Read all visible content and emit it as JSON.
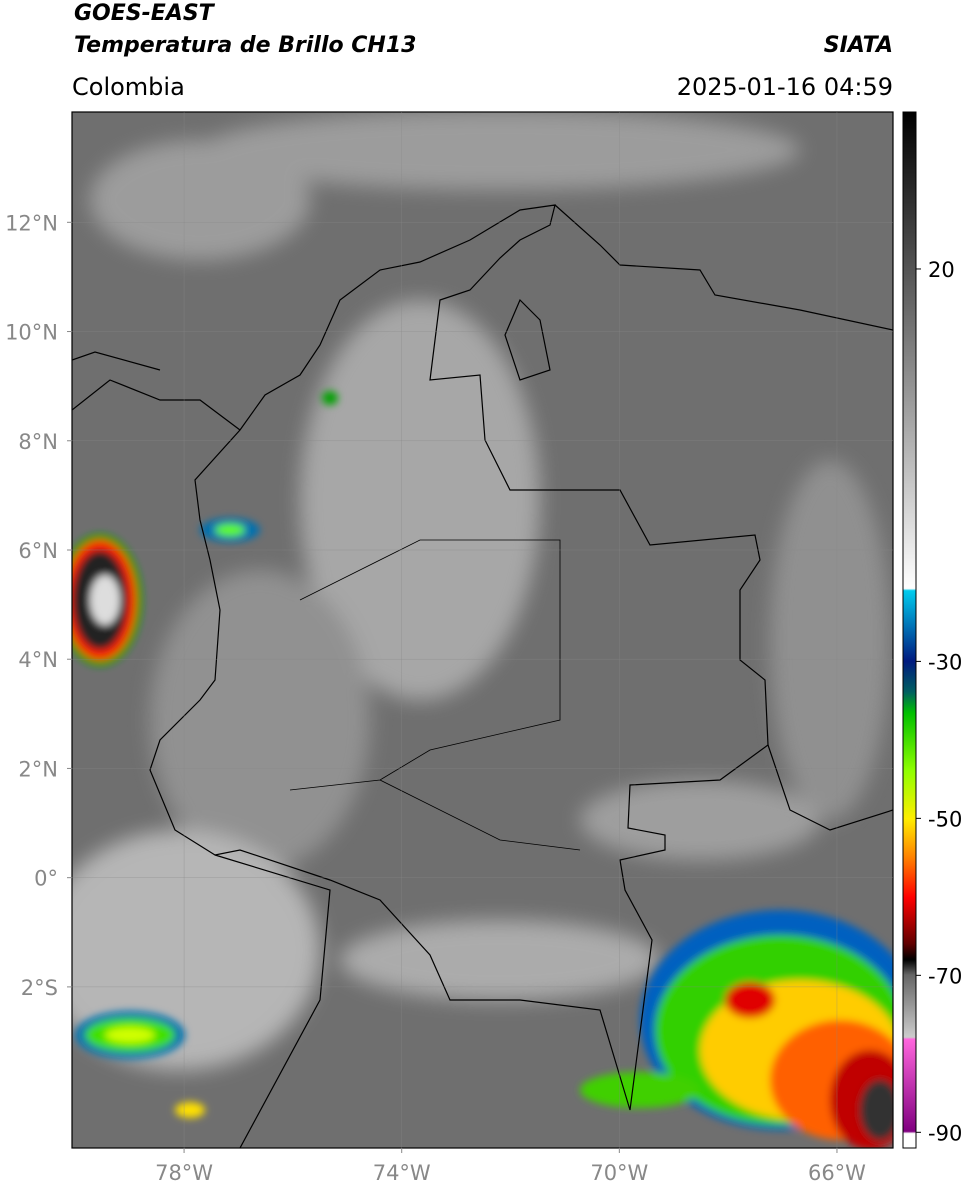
{
  "header": {
    "satellite": "GOES-EAST",
    "product": "Temperatura de Brillo CH13",
    "region": "Colombia",
    "source": "SIATA",
    "timestamp": "2025-01-16 04:59"
  },
  "map": {
    "lonlim": [
      -80.06,
      -64.97
    ],
    "latlim": [
      -4.95,
      14.02
    ],
    "lonticks": [
      {
        "value": -78,
        "label": "78°W"
      },
      {
        "value": -74,
        "label": "74°W"
      },
      {
        "value": -70,
        "label": "70°W"
      },
      {
        "value": -66,
        "label": "66°W"
      }
    ],
    "latticks": [
      {
        "value": 12,
        "label": "12°N"
      },
      {
        "value": 10,
        "label": "10°N"
      },
      {
        "value": 8,
        "label": "8°N"
      },
      {
        "value": 6,
        "label": "6°N"
      },
      {
        "value": 4,
        "label": "4°N"
      },
      {
        "value": 2,
        "label": "2°N"
      },
      {
        "value": 0,
        "label": "0°"
      },
      {
        "value": -2,
        "label": "2°S"
      }
    ],
    "grid": true
  },
  "colorbar": {
    "lim": [
      -92,
      40
    ],
    "ticks": [
      20,
      -30,
      -50,
      -70,
      -90
    ]
  }
}
